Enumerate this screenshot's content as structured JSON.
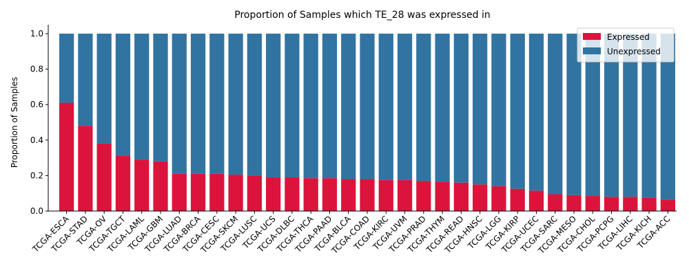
{
  "chart_data": {
    "type": "bar",
    "stacked": true,
    "title": "Proportion of Samples which TE_28 was expressed in",
    "xlabel": "",
    "ylabel": "Proportion of Samples",
    "ylim": [
      0,
      1.05
    ],
    "yticks": [
      0.0,
      0.2,
      0.4,
      0.6,
      0.8,
      1.0
    ],
    "ytick_labels": [
      "0.0",
      "0.2",
      "0.4",
      "0.6",
      "0.8",
      "1.0"
    ],
    "grid": false,
    "legend_position": "top-right",
    "categories": [
      "TCGA-ESCA",
      "TCGA-STAD",
      "TCGA-OV",
      "TCGA-TGCT",
      "TCGA-LAML",
      "TCGA-GBM",
      "TCGA-LUAD",
      "TCGA-BRCA",
      "TCGA-CESC",
      "TCGA-SKCM",
      "TCGA-LUSC",
      "TCGA-UCS",
      "TCGA-DLBC",
      "TCGA-THCA",
      "TCGA-PAAD",
      "TCGA-BLCA",
      "TCGA-COAD",
      "TCGA-KIRC",
      "TCGA-UVM",
      "TCGA-PRAD",
      "TCGA-THYM",
      "TCGA-READ",
      "TCGA-HNSC",
      "TCGA-LGG",
      "TCGA-KIRP",
      "TCGA-UCEC",
      "TCGA-SARC",
      "TCGA-MESO",
      "TCGA-CHOL",
      "TCGA-PCPG",
      "TCGA-LIHC",
      "TCGA-KICH",
      "TCGA-ACC"
    ],
    "series": [
      {
        "name": "Expressed",
        "color": "#dc143c",
        "values": [
          0.61,
          0.48,
          0.38,
          0.31,
          0.29,
          0.28,
          0.21,
          0.21,
          0.21,
          0.205,
          0.2,
          0.19,
          0.19,
          0.185,
          0.185,
          0.18,
          0.18,
          0.175,
          0.175,
          0.17,
          0.165,
          0.16,
          0.15,
          0.14,
          0.125,
          0.115,
          0.095,
          0.09,
          0.085,
          0.08,
          0.08,
          0.075,
          0.065
        ]
      },
      {
        "name": "Unexpressed",
        "color": "#3274a1",
        "values": [
          0.39,
          0.52,
          0.62,
          0.69,
          0.71,
          0.72,
          0.79,
          0.79,
          0.79,
          0.795,
          0.8,
          0.81,
          0.81,
          0.815,
          0.815,
          0.82,
          0.82,
          0.825,
          0.825,
          0.83,
          0.835,
          0.84,
          0.85,
          0.86,
          0.875,
          0.885,
          0.905,
          0.91,
          0.915,
          0.92,
          0.92,
          0.925,
          0.935
        ]
      }
    ]
  }
}
